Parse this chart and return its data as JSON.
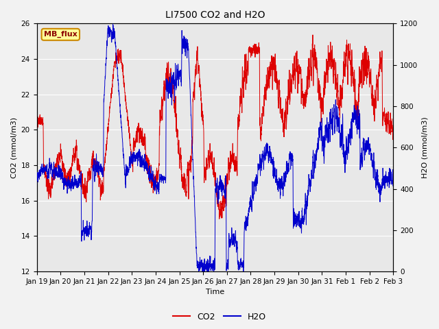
{
  "title": "LI7500 CO2 and H2O",
  "xlabel": "Time",
  "ylabel_left": "CO2 (mmol/m3)",
  "ylabel_right": "H2O (mmol/m3)",
  "ylim_left": [
    12,
    26
  ],
  "ylim_right": [
    0,
    1200
  ],
  "yticks_left": [
    12,
    14,
    16,
    18,
    20,
    22,
    24,
    26
  ],
  "yticks_right": [
    0,
    200,
    400,
    600,
    800,
    1000,
    1200
  ],
  "xtick_labels": [
    "Jan 19",
    "Jan 20",
    "Jan 21",
    "Jan 22",
    "Jan 23",
    "Jan 24",
    "Jan 25",
    "Jan 26",
    "Jan 27",
    "Jan 28",
    "Jan 29",
    "Jan 30",
    "Jan 31",
    "Feb 1",
    "Feb 2",
    "Feb 3"
  ],
  "co2_color": "#dd0000",
  "h2o_color": "#0000cc",
  "bg_color": "#f2f2f2",
  "plot_bg_color": "#e8e8e8",
  "legend_box_color": "#ffff99",
  "legend_box_edge": "#cc8800",
  "legend_text": "MB_flux",
  "grid_color": "#ffffff",
  "title_fontsize": 10,
  "axis_fontsize": 8,
  "tick_fontsize": 7.5,
  "legend_fontsize": 9,
  "n_points": 3200
}
